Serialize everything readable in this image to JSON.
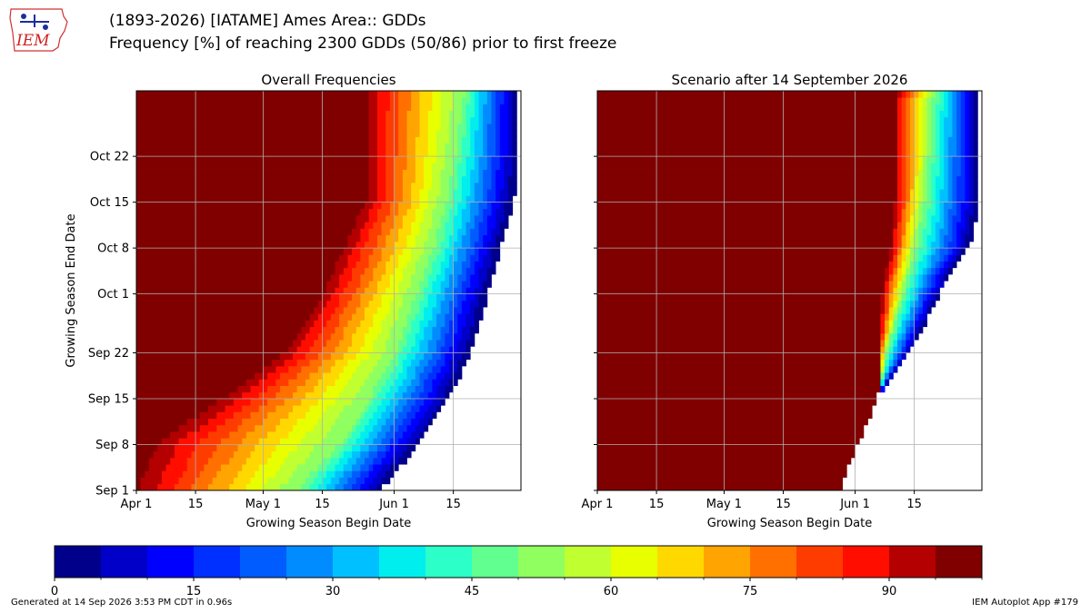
{
  "header": {
    "title_line1": "(1893-2026) [IATAME] Ames Area:: GDDs",
    "title_line2": "Frequency [%] of reaching 2300 GDDs (50/86) prior to first freeze",
    "logo_text": "IEM"
  },
  "footer": {
    "generated": "Generated at 14 Sep 2026 3:53 PM CDT in 0.96s",
    "app": "IEM Autoplot App #179"
  },
  "chart_data": [
    {
      "type": "heatmap",
      "title": "Overall Frequencies",
      "xlabel": "Growing Season Begin Date",
      "ylabel": "Growing Season End Date",
      "x_range": [
        "2026-04-01",
        "2026-06-30"
      ],
      "y_range": [
        "2026-09-01",
        "2026-10-31"
      ],
      "x_ticks": [
        {
          "date": "2026-04-01",
          "label": "Apr 1"
        },
        {
          "date": "2026-04-15",
          "label": "15"
        },
        {
          "date": "2026-05-01",
          "label": "May 1"
        },
        {
          "date": "2026-05-15",
          "label": "15"
        },
        {
          "date": "2026-06-01",
          "label": "Jun 1"
        },
        {
          "date": "2026-06-15",
          "label": "15"
        }
      ],
      "y_ticks": [
        {
          "date": "2026-09-01",
          "label": "Sep 1"
        },
        {
          "date": "2026-09-08",
          "label": "Sep 8"
        },
        {
          "date": "2026-09-15",
          "label": "Sep 15"
        },
        {
          "date": "2026-09-22",
          "label": "Sep 22"
        },
        {
          "date": "2026-10-01",
          "label": "Oct 1"
        },
        {
          "date": "2026-10-08",
          "label": "Oct 8"
        },
        {
          "date": "2026-10-15",
          "label": "Oct 15"
        },
        {
          "date": "2026-10-22",
          "label": "Oct 22"
        }
      ],
      "contours_begin_date": {
        "levels": [
          0,
          50,
          95
        ],
        "end_dates": [
          "2026-09-01",
          "2026-09-08",
          "2026-09-15",
          "2026-09-22",
          "2026-10-01",
          "2026-10-08",
          "2026-10-15",
          "2026-10-22",
          "2026-10-31"
        ],
        "freq_0": [
          "2026-05-29",
          "2026-06-07",
          "2026-06-14",
          "2026-06-19",
          "2026-06-23",
          "2026-06-26",
          "2026-06-29",
          "2026-06-30",
          "2026-06-30"
        ],
        "freq_50": [
          "2026-05-09",
          "2026-05-19",
          "2026-05-26",
          "2026-06-01",
          "2026-06-06",
          "2026-06-10",
          "2026-06-13",
          "2026-06-15",
          "2026-06-17"
        ],
        "freq_95": [
          "2026-04-01",
          "2026-04-06",
          "2026-04-22",
          "2026-05-06",
          "2026-05-15",
          "2026-05-20",
          "2026-05-25",
          "2026-05-25",
          "2026-05-25"
        ]
      },
      "grid": true
    },
    {
      "type": "heatmap",
      "title": "Scenario after 14 September 2026",
      "xlabel": "Growing Season Begin Date",
      "ylabel": "",
      "x_range": [
        "2026-04-01",
        "2026-06-30"
      ],
      "y_range": [
        "2026-09-01",
        "2026-10-31"
      ],
      "x_ticks": [
        {
          "date": "2026-04-01",
          "label": "Apr 1"
        },
        {
          "date": "2026-04-15",
          "label": "15"
        },
        {
          "date": "2026-05-01",
          "label": "May 1"
        },
        {
          "date": "2026-05-15",
          "label": "15"
        },
        {
          "date": "2026-06-01",
          "label": "Jun 1"
        },
        {
          "date": "2026-06-15",
          "label": "15"
        }
      ],
      "y_tick_labels_shown": false,
      "blank_begin_date_at_sep1": "2026-05-28",
      "blank_begin_date_at_sep14": "2026-06-06",
      "contours_begin_date": {
        "levels": [
          0,
          50,
          95
        ],
        "end_dates": [
          "2026-09-15",
          "2026-09-22",
          "2026-10-01",
          "2026-10-08",
          "2026-10-15",
          "2026-10-22",
          "2026-10-31"
        ],
        "freq_0": [
          "2026-06-06",
          "2026-06-14",
          "2026-06-21",
          "2026-06-28",
          "2026-06-30",
          "2026-06-30",
          "2026-06-30"
        ],
        "freq_50": [
          "2026-06-06",
          "2026-06-08",
          "2026-06-12",
          "2026-06-15",
          "2026-06-17",
          "2026-06-18",
          "2026-06-19"
        ],
        "freq_95": [
          "2026-06-06",
          "2026-06-06",
          "2026-06-07",
          "2026-06-09",
          "2026-06-10",
          "2026-06-10",
          "2026-06-10"
        ]
      },
      "grid": true
    }
  ],
  "colorbar": {
    "min": 0,
    "max": 100,
    "step": 5,
    "tick_values": [
      0,
      15,
      30,
      45,
      60,
      75,
      90
    ],
    "tick_labels": [
      "0",
      "15",
      "30",
      "45",
      "60",
      "75",
      "90"
    ],
    "colors": [
      "#00008b",
      "#0000c8",
      "#0000ff",
      "#0030ff",
      "#005cff",
      "#008cff",
      "#00c0ff",
      "#00eeee",
      "#2cffc8",
      "#60ff90",
      "#90ff60",
      "#c0ff30",
      "#e8ff00",
      "#ffd800",
      "#ffa400",
      "#ff7000",
      "#ff3c00",
      "#ff0e00",
      "#b40000",
      "#800000"
    ]
  },
  "colors": {
    "grid": "#b0b0b0",
    "axis": "#000000",
    "logo": "#d02020"
  }
}
